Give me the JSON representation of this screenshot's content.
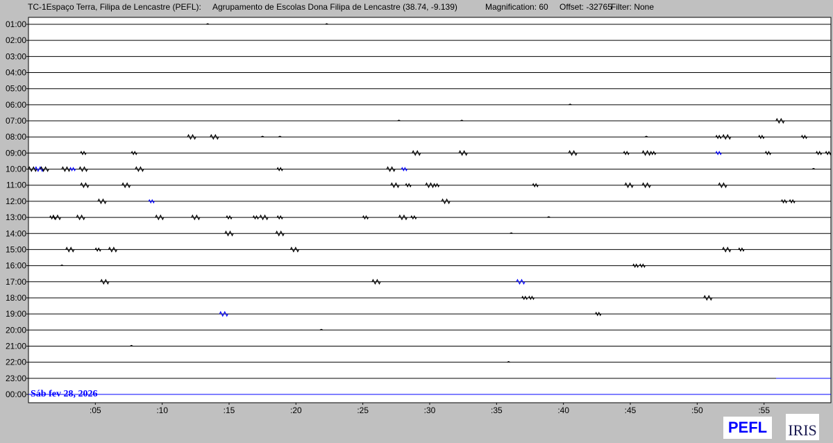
{
  "header": {
    "station": "TC-1Espaço Terra, Filipa de Lencastre (PEFL):",
    "location": "Agrupamento de Escolas Dona Filipa de Lencastre (38.74, -9.139)",
    "magnification": "Magnification: 60",
    "offset": "Offset: -32765",
    "filter": "Filter: None"
  },
  "logos": {
    "pefl": "PEFL",
    "iris": "IRIS"
  },
  "chart_data": {
    "type": "line",
    "title": "",
    "date_label": "Sáb fev 28, 2026",
    "rows": [
      "01:00",
      "02:00",
      "03:00",
      "04:00",
      "05:00",
      "06:00",
      "07:00",
      "08:00",
      "09:00",
      "10:00",
      "11:00",
      "12:00",
      "13:00",
      "14:00",
      "15:00",
      "16:00",
      "17:00",
      "18:00",
      "19:00",
      "20:00",
      "21:00",
      "22:00",
      "23:00",
      "00:00"
    ],
    "x_ticks": [
      ":05",
      ":10",
      ":15",
      ":20",
      ":25",
      ":30",
      ":35",
      ":40",
      ":45",
      ":50",
      ":55"
    ],
    "xlim_minutes": [
      0,
      60
    ],
    "trace_color": "#000000",
    "current_color": "#0000ff",
    "current_from": {
      "row": "23:00",
      "minute": 55.9
    },
    "events": {
      "01:00": [
        [
          13.4,
          1
        ],
        [
          22.3,
          1
        ]
      ],
      "06:00": [
        [
          40.5,
          1
        ]
      ],
      "07:00": [
        [
          27.7,
          1
        ],
        [
          32.4,
          1
        ],
        [
          56.2,
          3
        ]
      ],
      "08:00": [
        [
          12.2,
          3
        ],
        [
          13.9,
          3
        ],
        [
          17.5,
          1
        ],
        [
          18.8,
          1
        ],
        [
          46.2,
          1
        ],
        [
          51.6,
          2
        ],
        [
          52.2,
          3
        ],
        [
          54.8,
          2
        ],
        [
          58.0,
          2
        ]
      ],
      "09:00": [
        [
          4.1,
          2
        ],
        [
          7.9,
          2
        ],
        [
          29.0,
          3
        ],
        [
          32.5,
          3
        ],
        [
          40.7,
          3
        ],
        [
          44.7,
          2
        ],
        [
          46.2,
          3
        ],
        [
          46.7,
          2
        ],
        [
          51.6,
          2,
          "b"
        ],
        [
          55.3,
          2
        ],
        [
          59.1,
          2
        ],
        [
          59.8,
          2
        ]
      ],
      "10:00": [
        [
          0.3,
          3
        ],
        [
          0.8,
          3,
          "b"
        ],
        [
          1.2,
          3
        ],
        [
          2.8,
          3
        ],
        [
          3.3,
          2,
          "b"
        ],
        [
          4.1,
          3
        ],
        [
          8.3,
          3
        ],
        [
          18.8,
          2
        ],
        [
          27.1,
          3
        ],
        [
          28.1,
          2,
          "b"
        ],
        [
          58.7,
          1
        ]
      ],
      "11:00": [
        [
          4.2,
          3
        ],
        [
          7.3,
          3
        ],
        [
          27.4,
          3
        ],
        [
          28.4,
          2
        ],
        [
          30.0,
          3
        ],
        [
          30.5,
          2
        ],
        [
          37.9,
          2
        ],
        [
          44.9,
          3
        ],
        [
          46.2,
          3
        ],
        [
          51.9,
          3
        ]
      ],
      "12:00": [
        [
          5.5,
          3
        ],
        [
          9.2,
          2,
          "b"
        ],
        [
          31.2,
          3
        ],
        [
          56.5,
          2
        ],
        [
          57.1,
          2
        ]
      ],
      "13:00": [
        [
          1.8,
          2
        ],
        [
          2.1,
          3
        ],
        [
          3.9,
          3
        ],
        [
          9.8,
          3
        ],
        [
          12.5,
          3
        ],
        [
          15.0,
          2
        ],
        [
          17.0,
          2
        ],
        [
          17.6,
          3
        ],
        [
          18.8,
          2
        ],
        [
          25.2,
          2
        ],
        [
          28.0,
          3
        ],
        [
          28.8,
          2
        ],
        [
          38.9,
          1
        ]
      ],
      "14:00": [
        [
          15.0,
          3
        ],
        [
          18.8,
          3
        ],
        [
          36.1,
          1
        ]
      ],
      "15:00": [
        [
          3.1,
          3
        ],
        [
          5.2,
          2
        ],
        [
          6.3,
          3
        ],
        [
          19.9,
          3
        ],
        [
          52.2,
          3
        ],
        [
          53.3,
          2
        ]
      ],
      "16:00": [
        [
          2.5,
          1
        ],
        [
          45.4,
          2
        ],
        [
          45.9,
          2
        ]
      ],
      "17:00": [
        [
          5.7,
          3
        ],
        [
          26.0,
          3
        ],
        [
          36.8,
          3,
          "b"
        ]
      ],
      "18:00": [
        [
          37.1,
          2
        ],
        [
          37.6,
          2
        ],
        [
          50.8,
          3
        ]
      ],
      "19:00": [
        [
          14.6,
          3,
          "b"
        ],
        [
          42.6,
          2
        ]
      ],
      "20:00": [
        [
          21.9,
          1
        ]
      ],
      "21:00": [
        [
          7.7,
          1
        ]
      ],
      "22:00": [
        [
          35.9,
          1
        ]
      ]
    }
  }
}
